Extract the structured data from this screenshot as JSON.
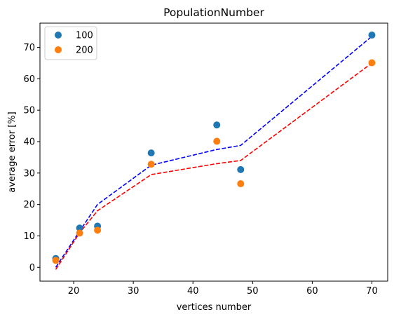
{
  "chart_data": {
    "type": "scatter",
    "title": "PopulationNumber",
    "xlabel": "vertices number",
    "ylabel": "average error [%]",
    "xlim": [
      14.35,
      72.65
    ],
    "ylim": [
      -4.4,
      77.7
    ],
    "xticks": [
      20,
      30,
      40,
      50,
      60,
      70
    ],
    "yticks": [
      0,
      10,
      20,
      30,
      40,
      50,
      60,
      70
    ],
    "grid": false,
    "legend_position": "top-left",
    "series": [
      {
        "name": "100",
        "kind": "scatter",
        "color": "#1f77b4",
        "x": [
          17,
          21,
          24,
          33,
          44,
          48,
          70
        ],
        "y": [
          2.8,
          12.5,
          13.1,
          36.4,
          45.3,
          31.1,
          73.9
        ]
      },
      {
        "name": "200",
        "kind": "scatter",
        "color": "#ff7f0e",
        "x": [
          17,
          21,
          24,
          33,
          44,
          48,
          70
        ],
        "y": [
          2.2,
          10.9,
          11.8,
          32.8,
          40.1,
          26.6,
          65.1
        ]
      }
    ],
    "lines": [
      {
        "kind": "dashed",
        "color": "#0000ff",
        "x": [
          17,
          21,
          24,
          33,
          44,
          48,
          70
        ],
        "y": [
          0.0,
          11.5,
          20.0,
          32.5,
          37.5,
          38.8,
          73.5
        ]
      },
      {
        "kind": "dashed",
        "color": "#ff0000",
        "x": [
          17,
          21,
          24,
          33,
          44,
          48,
          70
        ],
        "y": [
          -0.7,
          11.0,
          18.0,
          29.5,
          33.0,
          34.0,
          65.0
        ]
      }
    ]
  }
}
